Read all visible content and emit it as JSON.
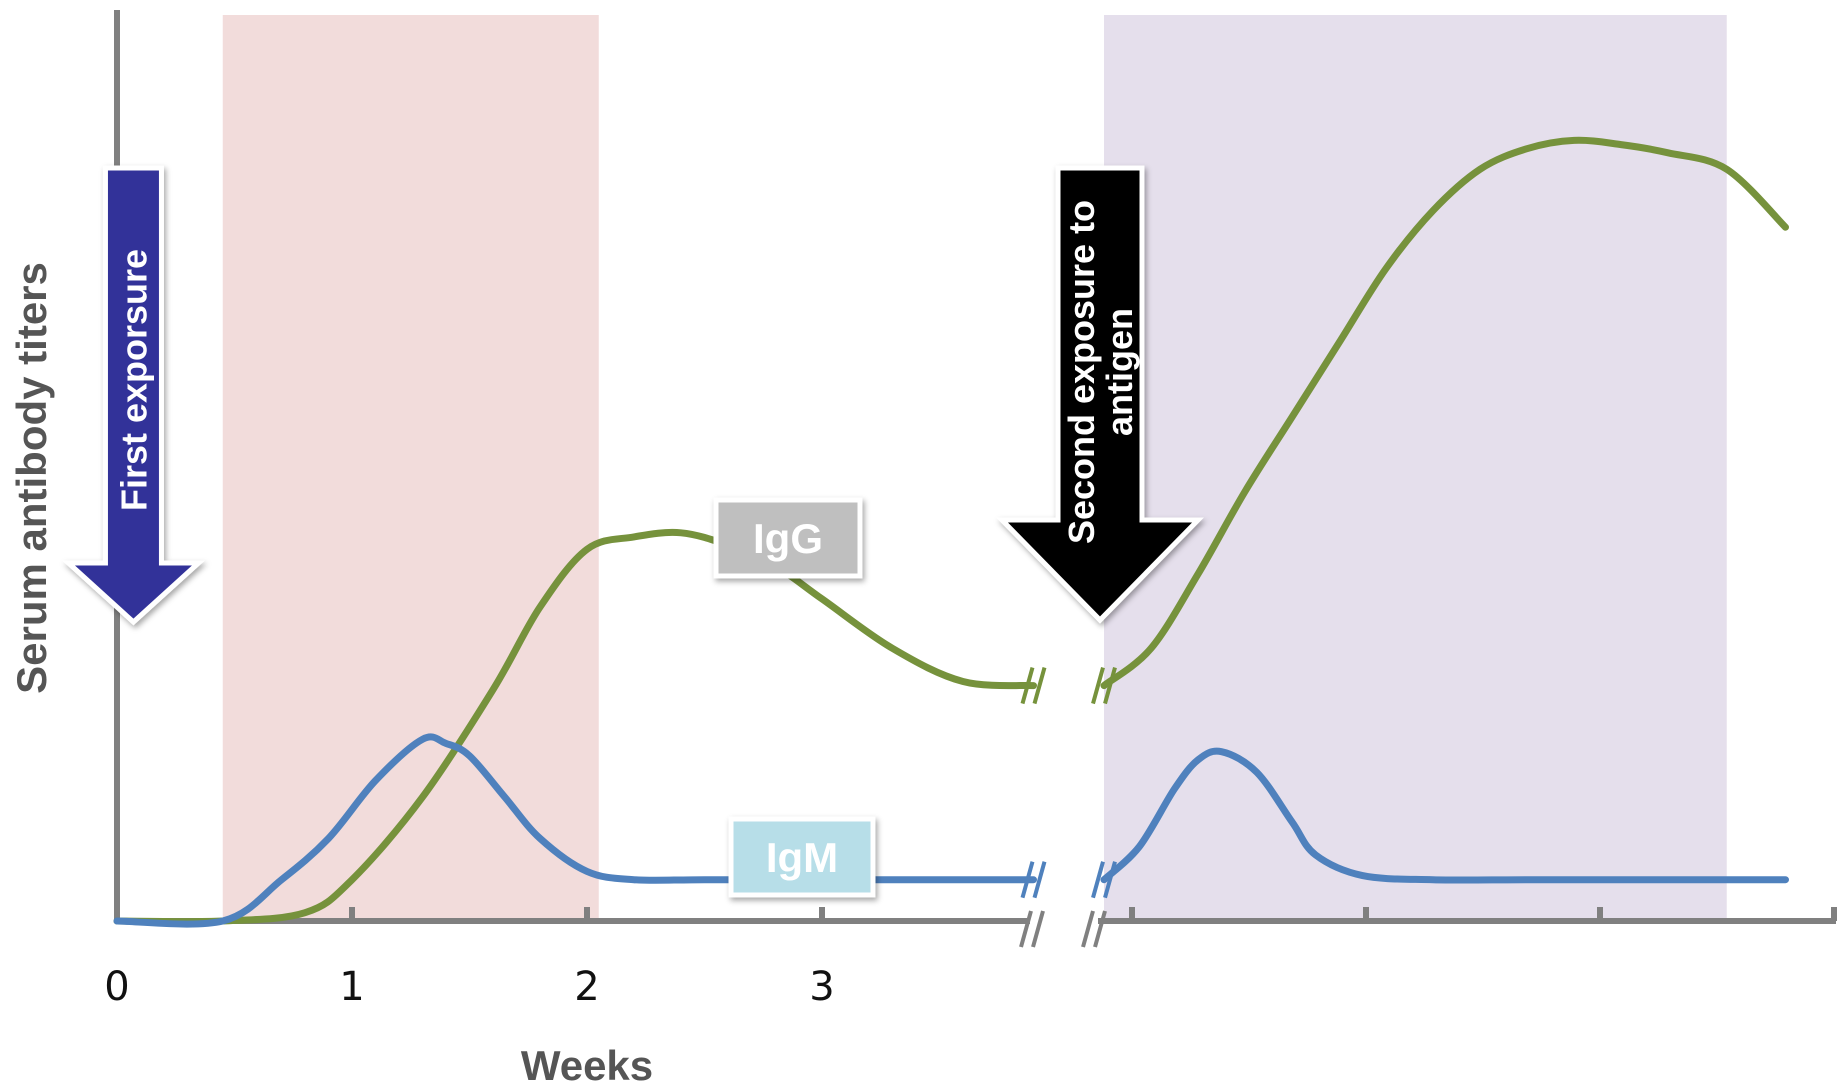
{
  "chart_data": {
    "type": "line",
    "title": "",
    "xlabel": "Weeks",
    "ylabel": "Serum antibody titers",
    "x_ticks_primary": [
      0,
      1,
      2,
      3
    ],
    "x_tick_labels": [
      "0",
      "1",
      "2",
      "3"
    ],
    "xlim_primary": [
      0,
      3.9
    ],
    "axis_break": true,
    "ylim": [
      0,
      1
    ],
    "grid": false,
    "shaded_regions": [
      {
        "phase": "primary",
        "x_range": [
          0.45,
          2.05
        ],
        "color": "#f2dcdb"
      },
      {
        "phase": "secondary",
        "x_range": [
          4.2,
          6.85
        ],
        "color": "#e5dfec"
      }
    ],
    "annotations": [
      {
        "text": "First exporsure",
        "x": 0.07,
        "color": "#333399"
      },
      {
        "text": "Second exposure to antigen",
        "text_lines": [
          "Second exposure to",
          "antigen"
        ],
        "x": 4.2,
        "color": "#000000"
      }
    ],
    "series": [
      {
        "name": "IgG",
        "color": "#76923c",
        "label_color": "#bfbfbf",
        "segments": [
          {
            "x": [
              0,
              0.45,
              0.8,
              1.0,
              1.3,
              1.6,
              1.8,
              2.0,
              2.2,
              2.4,
              2.6,
              2.8,
              3.0,
              3.3,
              3.6,
              3.9
            ],
            "y": [
              0,
              0,
              0.01,
              0.05,
              0.15,
              0.28,
              0.38,
              0.45,
              0.465,
              0.47,
              0.455,
              0.43,
              0.39,
              0.33,
              0.29,
              0.285
            ]
          },
          {
            "x": [
              4.2,
              4.4,
              4.6,
              4.8,
              5.0,
              5.2,
              5.4,
              5.6,
              5.8,
              6.0,
              6.2,
              6.4,
              6.6,
              6.85,
              7.1
            ],
            "y": [
              0.285,
              0.33,
              0.42,
              0.52,
              0.61,
              0.7,
              0.79,
              0.86,
              0.91,
              0.935,
              0.945,
              0.94,
              0.93,
              0.91,
              0.84
            ]
          }
        ]
      },
      {
        "name": "IgM",
        "color": "#4f81bd",
        "label_color": "#b7dee8",
        "segments": [
          {
            "x": [
              0,
              0.45,
              0.7,
              0.9,
              1.1,
              1.3,
              1.4,
              1.5,
              1.65,
              1.8,
              2.0,
              2.2,
              2.5,
              3.0,
              3.5,
              3.9
            ],
            "y": [
              0,
              0,
              0.05,
              0.1,
              0.17,
              0.22,
              0.215,
              0.2,
              0.15,
              0.1,
              0.06,
              0.05,
              0.05,
              0.05,
              0.05,
              0.05
            ]
          },
          {
            "x": [
              4.2,
              4.35,
              4.5,
              4.6,
              4.7,
              4.85,
              5.0,
              5.1,
              5.3,
              5.6,
              6.0,
              6.5,
              7.1
            ],
            "y": [
              0.05,
              0.09,
              0.16,
              0.195,
              0.205,
              0.18,
              0.12,
              0.08,
              0.055,
              0.05,
              0.05,
              0.05,
              0.05
            ]
          }
        ]
      }
    ]
  }
}
